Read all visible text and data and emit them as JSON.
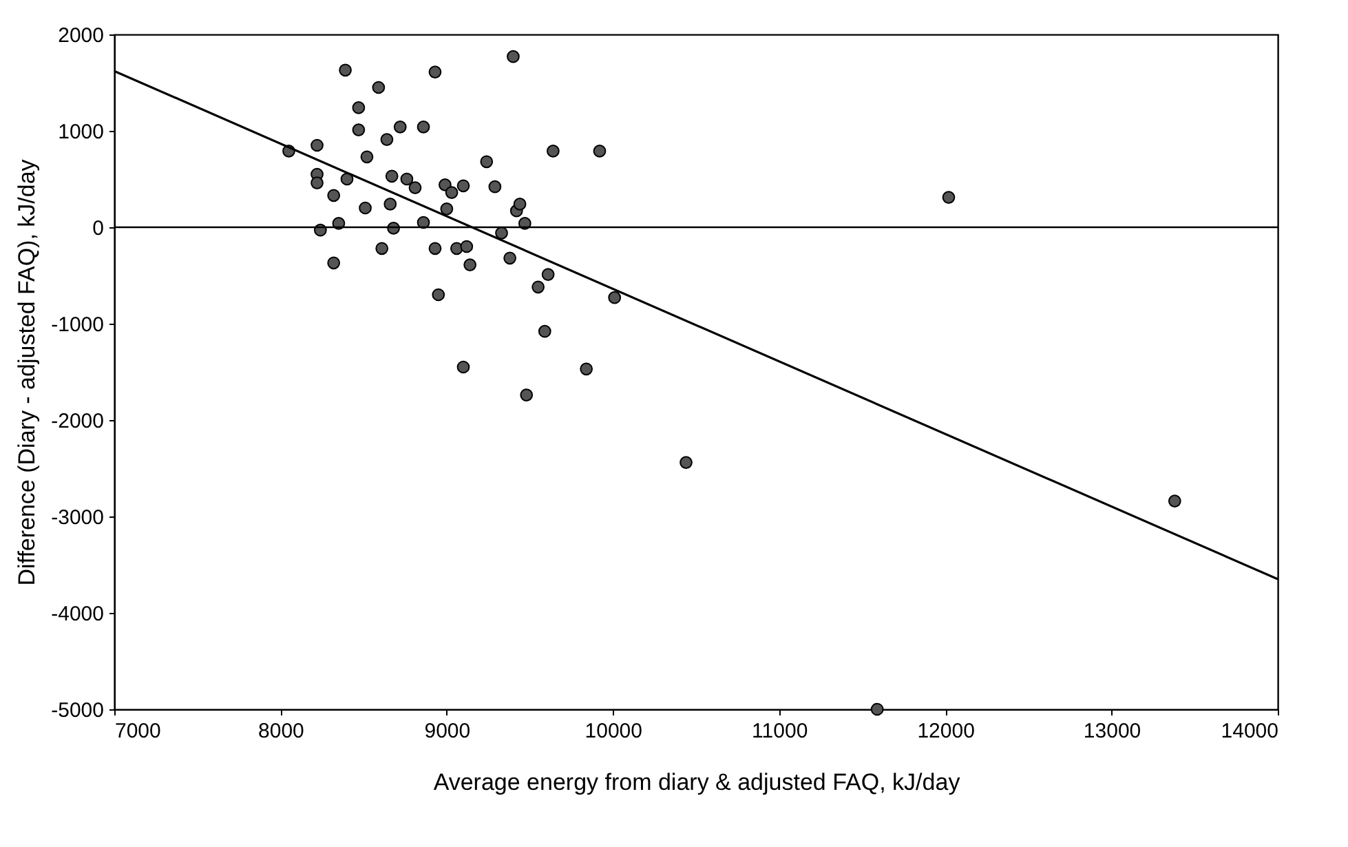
{
  "chart_data": {
    "type": "scatter",
    "xlabel": "Average energy from diary & adjusted FAQ, kJ/day",
    "ylabel": "Difference (Diary - adjusted FAQ), kJ/day",
    "xlim": [
      7000,
      14000
    ],
    "xticks": [
      7000,
      8000,
      9000,
      10000,
      11000,
      12000,
      13000,
      14000
    ],
    "ylim": [
      -5000,
      2000
    ],
    "yticks": [
      -5000,
      -4000,
      -3000,
      -2000,
      -1000,
      0,
      1000,
      2000
    ],
    "grid": false,
    "marker": "circle",
    "series": [
      {
        "color": "#555555",
        "x": [
          8050,
          8220,
          8220,
          8220,
          8240,
          8320,
          8320,
          8350,
          8390,
          8400,
          8470,
          8470,
          8520,
          8510,
          8590,
          8610,
          8640,
          8660,
          8670,
          8680,
          8720,
          8760,
          8810,
          8860,
          8860,
          8930,
          8930,
          8950,
          8990,
          9000,
          9030,
          9060,
          9100,
          9120,
          9100,
          9140,
          9240,
          9290,
          9330,
          9380,
          9400,
          9420,
          9440,
          9470,
          9480,
          9550,
          9590,
          9610,
          9640,
          9840,
          9920,
          10010,
          10440,
          11590,
          12020,
          13380
        ],
        "values": [
          790,
          850,
          550,
          460,
          -30,
          330,
          -370,
          40,
          1630,
          500,
          1240,
          1010,
          730,
          200,
          1450,
          -220,
          910,
          240,
          530,
          -10,
          1040,
          500,
          410,
          1040,
          50,
          1610,
          -220,
          -700,
          440,
          190,
          360,
          -220,
          430,
          -200,
          -1450,
          -390,
          680,
          420,
          -60,
          -320,
          1770,
          170,
          240,
          40,
          -1740,
          -620,
          -1080,
          -490,
          790,
          -1470,
          790,
          -730,
          -2440,
          -5000,
          310,
          -2840
        ]
      },
      {
        "type": "line",
        "color": "#000000",
        "marker": "none",
        "x": [
          7000,
          14000
        ],
        "values": [
          1620,
          -3650
        ]
      }
    ],
    "ref_lines": [
      {
        "axis": "y",
        "value": 0,
        "color": "#000000"
      }
    ]
  }
}
